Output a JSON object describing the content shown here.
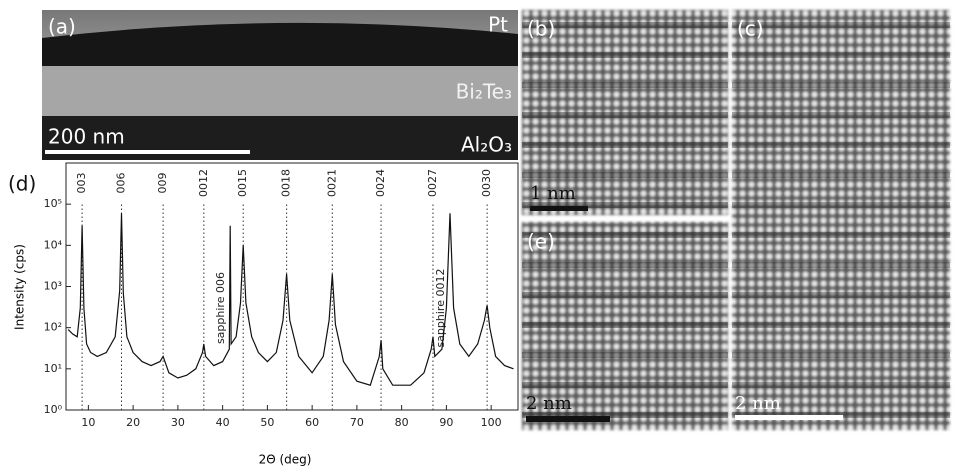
{
  "panels": [
    {
      "label": "(a)",
      "layers": [
        "Pt",
        "Bi₂Te₃",
        "Al₂O₃"
      ],
      "scale_bar": "200 nm"
    },
    {
      "label": "(b)",
      "scale_bar": "1 nm"
    },
    {
      "label": "(c)",
      "scale_bar": "2 nm"
    },
    {
      "label": "(e)",
      "scale_bar": "2 nm"
    }
  ],
  "chart_data": {
    "type": "line",
    "panel_label": "(d)",
    "x_label": "2Θ (deg)",
    "y_label": "Intensity (cps)",
    "log_y": true,
    "color": "#111",
    "xlim": [
      5,
      106
    ],
    "xticks": [
      10,
      20,
      30,
      40,
      50,
      60,
      70,
      80,
      90,
      100
    ],
    "ylim": [
      1,
      1000000
    ],
    "yticks": [
      {
        "value": 1,
        "label": "10⁰"
      },
      {
        "value": 10,
        "label": "10¹"
      },
      {
        "value": 100,
        "label": "10²"
      },
      {
        "value": 1000,
        "label": "10³"
      },
      {
        "value": 10000,
        "label": "10⁴"
      },
      {
        "value": 100000,
        "label": "10⁵"
      }
    ],
    "peak_markers": [
      {
        "x": 8.6,
        "label": "003"
      },
      {
        "x": 17.4,
        "label": "006"
      },
      {
        "x": 26.7,
        "label": "009"
      },
      {
        "x": 35.8,
        "label": "0012"
      },
      {
        "x": 44.6,
        "label": "0015"
      },
      {
        "x": 54.3,
        "label": "0018"
      },
      {
        "x": 64.5,
        "label": "0021"
      },
      {
        "x": 75.4,
        "label": "0024"
      },
      {
        "x": 87,
        "label": "0027"
      },
      {
        "x": 99.1,
        "label": "0030"
      }
    ],
    "annotations": [
      {
        "x": 41.7,
        "y": 300,
        "text": "sapphire 006"
      },
      {
        "x": 90.8,
        "y": 300,
        "text": "sapphire 0012"
      }
    ],
    "x": [
      5.5,
      6.5,
      7.5,
      8.2,
      8.6,
      9.0,
      9.6,
      10.5,
      12,
      14,
      16,
      17,
      17.4,
      17.8,
      18.6,
      20,
      22,
      24,
      26,
      26.7,
      28,
      30,
      32,
      34,
      35.5,
      35.8,
      36.2,
      38,
      40,
      41.5,
      41.7,
      41.9,
      43,
      44,
      44.6,
      45.2,
      46.5,
      48,
      50,
      52,
      53.5,
      54.3,
      55,
      57,
      60,
      62.5,
      63.8,
      64.5,
      65.2,
      67,
      70,
      73,
      75,
      75.4,
      75.8,
      78,
      82,
      85,
      86.6,
      87,
      87.4,
      89,
      90,
      90.8,
      91.6,
      93,
      95,
      97,
      98.5,
      99.1,
      99.7,
      101,
      103,
      105
    ],
    "values": [
      90,
      70,
      60,
      300,
      30000,
      300,
      40,
      25,
      20,
      25,
      60,
      800,
      60000,
      700,
      60,
      25,
      15,
      12,
      15,
      20,
      8,
      6,
      7,
      10,
      25,
      40,
      20,
      12,
      15,
      30,
      30000,
      40,
      60,
      400,
      10000,
      400,
      60,
      25,
      15,
      25,
      150,
      2000,
      150,
      20,
      8,
      20,
      150,
      2000,
      120,
      15,
      5,
      4,
      20,
      50,
      10,
      4,
      4,
      8,
      30,
      60,
      20,
      30,
      300,
      60000,
      300,
      40,
      20,
      40,
      150,
      350,
      100,
      20,
      12,
      10
    ]
  }
}
